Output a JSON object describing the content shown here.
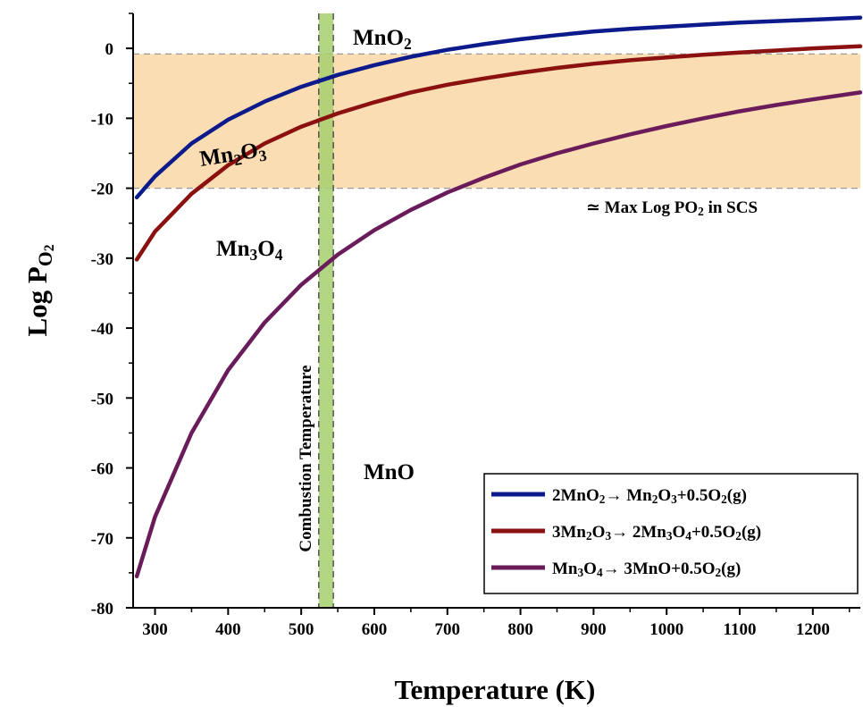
{
  "chart_data": {
    "type": "line",
    "xlabel": "Temperature (K)",
    "ylabel_main": "Log P",
    "ylabel_sub": "O",
    "ylabel_subsub": "2",
    "xlim": [
      270,
      1265
    ],
    "ylim": [
      -80,
      5
    ],
    "xticks": [
      300,
      400,
      500,
      600,
      700,
      800,
      900,
      1000,
      1100,
      1200
    ],
    "yticks": [
      0,
      -10,
      -20,
      -30,
      -40,
      -50,
      -60,
      -70,
      -80
    ],
    "grid": false,
    "legend_position": "bottom-right",
    "series": [
      {
        "name": "2MnO2→ Mn2O3+0.5O2(g)",
        "legend_parts": [
          [
            "2MnO",
            ""
          ],
          [
            "2",
            "sub"
          ],
          [
            "→ Mn",
            ""
          ],
          [
            "2",
            "sub"
          ],
          [
            "O",
            ""
          ],
          [
            "3",
            "sub"
          ],
          [
            "+0.5O",
            ""
          ],
          [
            "2",
            "sub"
          ],
          [
            "(g)",
            ""
          ]
        ],
        "color": "#0d1a8c",
        "x": [
          275,
          300,
          350,
          400,
          450,
          500,
          550,
          600,
          650,
          700,
          750,
          800,
          850,
          900,
          950,
          1000,
          1050,
          1100,
          1150,
          1200,
          1265
        ],
        "y": [
          -21.3,
          -18.3,
          -13.6,
          -10.2,
          -7.6,
          -5.5,
          -3.8,
          -2.4,
          -1.2,
          -0.2,
          0.6,
          1.3,
          1.9,
          2.4,
          2.8,
          3.1,
          3.4,
          3.7,
          3.9,
          4.1,
          4.4
        ]
      },
      {
        "name": "3Mn2O3→ 2Mn3O4+0.5O2(g)",
        "legend_parts": [
          [
            "3Mn",
            ""
          ],
          [
            "2",
            "sub"
          ],
          [
            "O",
            ""
          ],
          [
            "3",
            "sub"
          ],
          [
            "→ 2Mn",
            ""
          ],
          [
            "3",
            "sub"
          ],
          [
            "O",
            ""
          ],
          [
            "4",
            "sub"
          ],
          [
            "+0.5O",
            ""
          ],
          [
            "2",
            "sub"
          ],
          [
            "(g)",
            ""
          ]
        ],
        "color": "#8b1010",
        "x": [
          275,
          300,
          350,
          400,
          450,
          500,
          550,
          600,
          650,
          700,
          750,
          800,
          850,
          900,
          950,
          1000,
          1050,
          1100,
          1150,
          1200,
          1265
        ],
        "y": [
          -30.2,
          -26.2,
          -20.8,
          -16.7,
          -13.6,
          -11.2,
          -9.3,
          -7.7,
          -6.3,
          -5.2,
          -4.3,
          -3.5,
          -2.8,
          -2.2,
          -1.7,
          -1.3,
          -0.9,
          -0.6,
          -0.3,
          0.0,
          0.3
        ]
      },
      {
        "name": "Mn3O4→ 3MnO+0.5O2(g)",
        "legend_parts": [
          [
            "Mn",
            ""
          ],
          [
            "3",
            "sub"
          ],
          [
            "O",
            ""
          ],
          [
            "4",
            "sub"
          ],
          [
            "→ 3MnO+0.5O",
            ""
          ],
          [
            "2",
            "sub"
          ],
          [
            "(g)",
            ""
          ]
        ],
        "color": "#6a1b5a",
        "x": [
          275,
          300,
          350,
          400,
          450,
          500,
          550,
          600,
          650,
          700,
          750,
          800,
          850,
          900,
          950,
          1000,
          1050,
          1100,
          1150,
          1200,
          1265
        ],
        "y": [
          -75.5,
          -67.0,
          -55.0,
          -46.0,
          -39.2,
          -33.8,
          -29.5,
          -26.0,
          -23.1,
          -20.6,
          -18.5,
          -16.6,
          -15.0,
          -13.6,
          -12.3,
          -11.1,
          -10.0,
          -9.0,
          -8.1,
          -7.3,
          -6.3
        ]
      }
    ],
    "shaded_band": {
      "y_from": -0.8,
      "y_to": -20,
      "color": "#f9d7a5"
    },
    "combustion_band": {
      "x_from": 524,
      "x_to": 544,
      "color": "#a4cf6e",
      "label": "Combustion Temperature"
    },
    "annotations": {
      "mno2": [
        [
          "MnO",
          ""
        ],
        [
          "2",
          "sub"
        ]
      ],
      "mn2o3": [
        [
          "Mn",
          ""
        ],
        [
          "2",
          "sub"
        ],
        [
          "O",
          ""
        ],
        [
          "3",
          "sub"
        ]
      ],
      "mn3o4": [
        [
          "Mn",
          ""
        ],
        [
          "3",
          "sub"
        ],
        [
          "O",
          ""
        ],
        [
          "4",
          "sub"
        ]
      ],
      "mno": [
        [
          "MnO",
          ""
        ]
      ],
      "max_log": [
        [
          "≃ Max Log PO",
          ""
        ],
        [
          "2",
          "sub"
        ],
        [
          " in SCS",
          ""
        ]
      ]
    }
  }
}
